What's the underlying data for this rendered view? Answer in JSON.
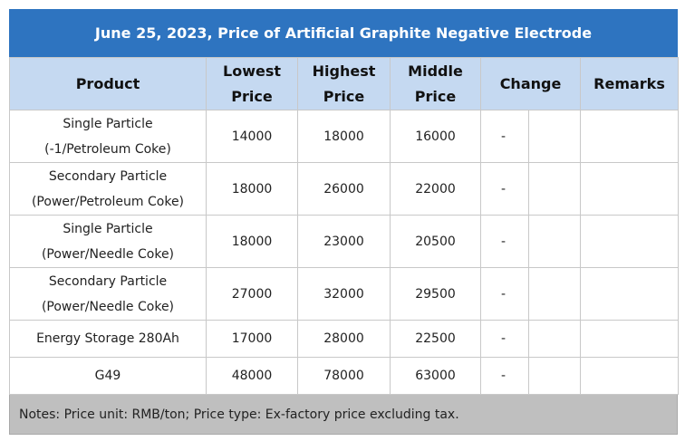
{
  "title": "June 25, 2023, Price of Artificial Graphite Negative Electrode",
  "header": [
    "Product",
    "Lowest\nPrice",
    "Highest\nPrice",
    "Middle\nPrice",
    "Change",
    "Remarks"
  ],
  "rows": [
    {
      "product": "Single Particle\n(-1/Petroleum Coke)",
      "lowest": 14000,
      "highest": 18000,
      "middle": 16000,
      "change": "-"
    },
    {
      "product": "Secondary Particle\n(Power/Petroleum Coke)",
      "lowest": 18000,
      "highest": 26000,
      "middle": 22000,
      "change": "-"
    },
    {
      "product": "Single Particle\n(Power/Needle Coke)",
      "lowest": 18000,
      "highest": 23000,
      "middle": 20500,
      "change": "-"
    },
    {
      "product": "Secondary Particle\n(Power/Needle Coke)",
      "lowest": 27000,
      "highest": 32000,
      "middle": 29500,
      "change": "-"
    },
    {
      "product": "Energy Storage 280Ah",
      "lowest": 17000,
      "highest": 28000,
      "middle": 22500,
      "change": "-"
    },
    {
      "product": "G49",
      "lowest": 48000,
      "highest": 78000,
      "middle": 63000,
      "change": "-"
    }
  ],
  "notes": "Notes: Price unit: RMB/ton; Price type: Ex-factory price excluding tax."
}
